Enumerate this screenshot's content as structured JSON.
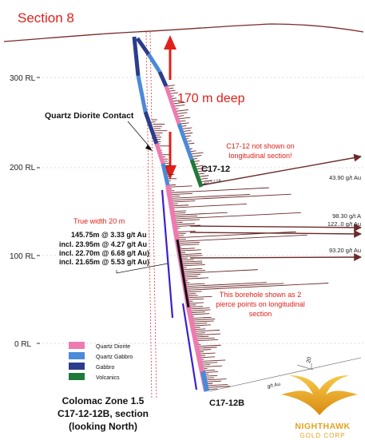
{
  "section_title": "Section 8",
  "depth_label": "170 m deep",
  "contact_label": "Quartz Diorite Contact",
  "rl_labels": [
    "300 RL",
    "200 RL",
    "100 RL",
    "0 RL"
  ],
  "note_c1712": [
    "C17-12  not shown on",
    "longitudinal section!"
  ],
  "hole_c1712": "C17-12",
  "hole_c1712b": "C17-12B",
  "hole_c1712_small": "C17-12A",
  "assays": [
    "43.90 g/t Au",
    "98.30 g/t A",
    "122..0 g/t Au",
    "93.20 g/t Au"
  ],
  "true_width": "True width 20 m",
  "intercepts": [
    "145.75m @ 3.33 g/t Au",
    "incl. 23.95m @ 4.27 g/t Au",
    "incl. 22.70m @ 6.68 g/t Au)",
    "incl. 21.65m @ 5.53 g/t Au)"
  ],
  "pierce_note": [
    "This borehole shown as 2",
    "pierce points on longitudinal",
    "section"
  ],
  "scale_label": "g/t Au",
  "scale_value": "20",
  "legend": [
    {
      "label": "Quartz Diorite",
      "color": "#ee7bb0"
    },
    {
      "label": "Quartz Gabbro",
      "color": "#4a8ad8"
    },
    {
      "label": "Gabbro",
      "color": "#2b3c8c"
    },
    {
      "label": "Volcanics",
      "color": "#1f7a3a"
    }
  ],
  "caption": [
    "Colomac Zone 1.5",
    "C17-12-12B,  section",
    "(looking North)"
  ],
  "logo_text": [
    "NIGHTHAWK",
    "GOLD CORP"
  ],
  "colors": {
    "red": "#e0201a",
    "bars": "#6b2a2a",
    "gold": "#e6a21e"
  }
}
